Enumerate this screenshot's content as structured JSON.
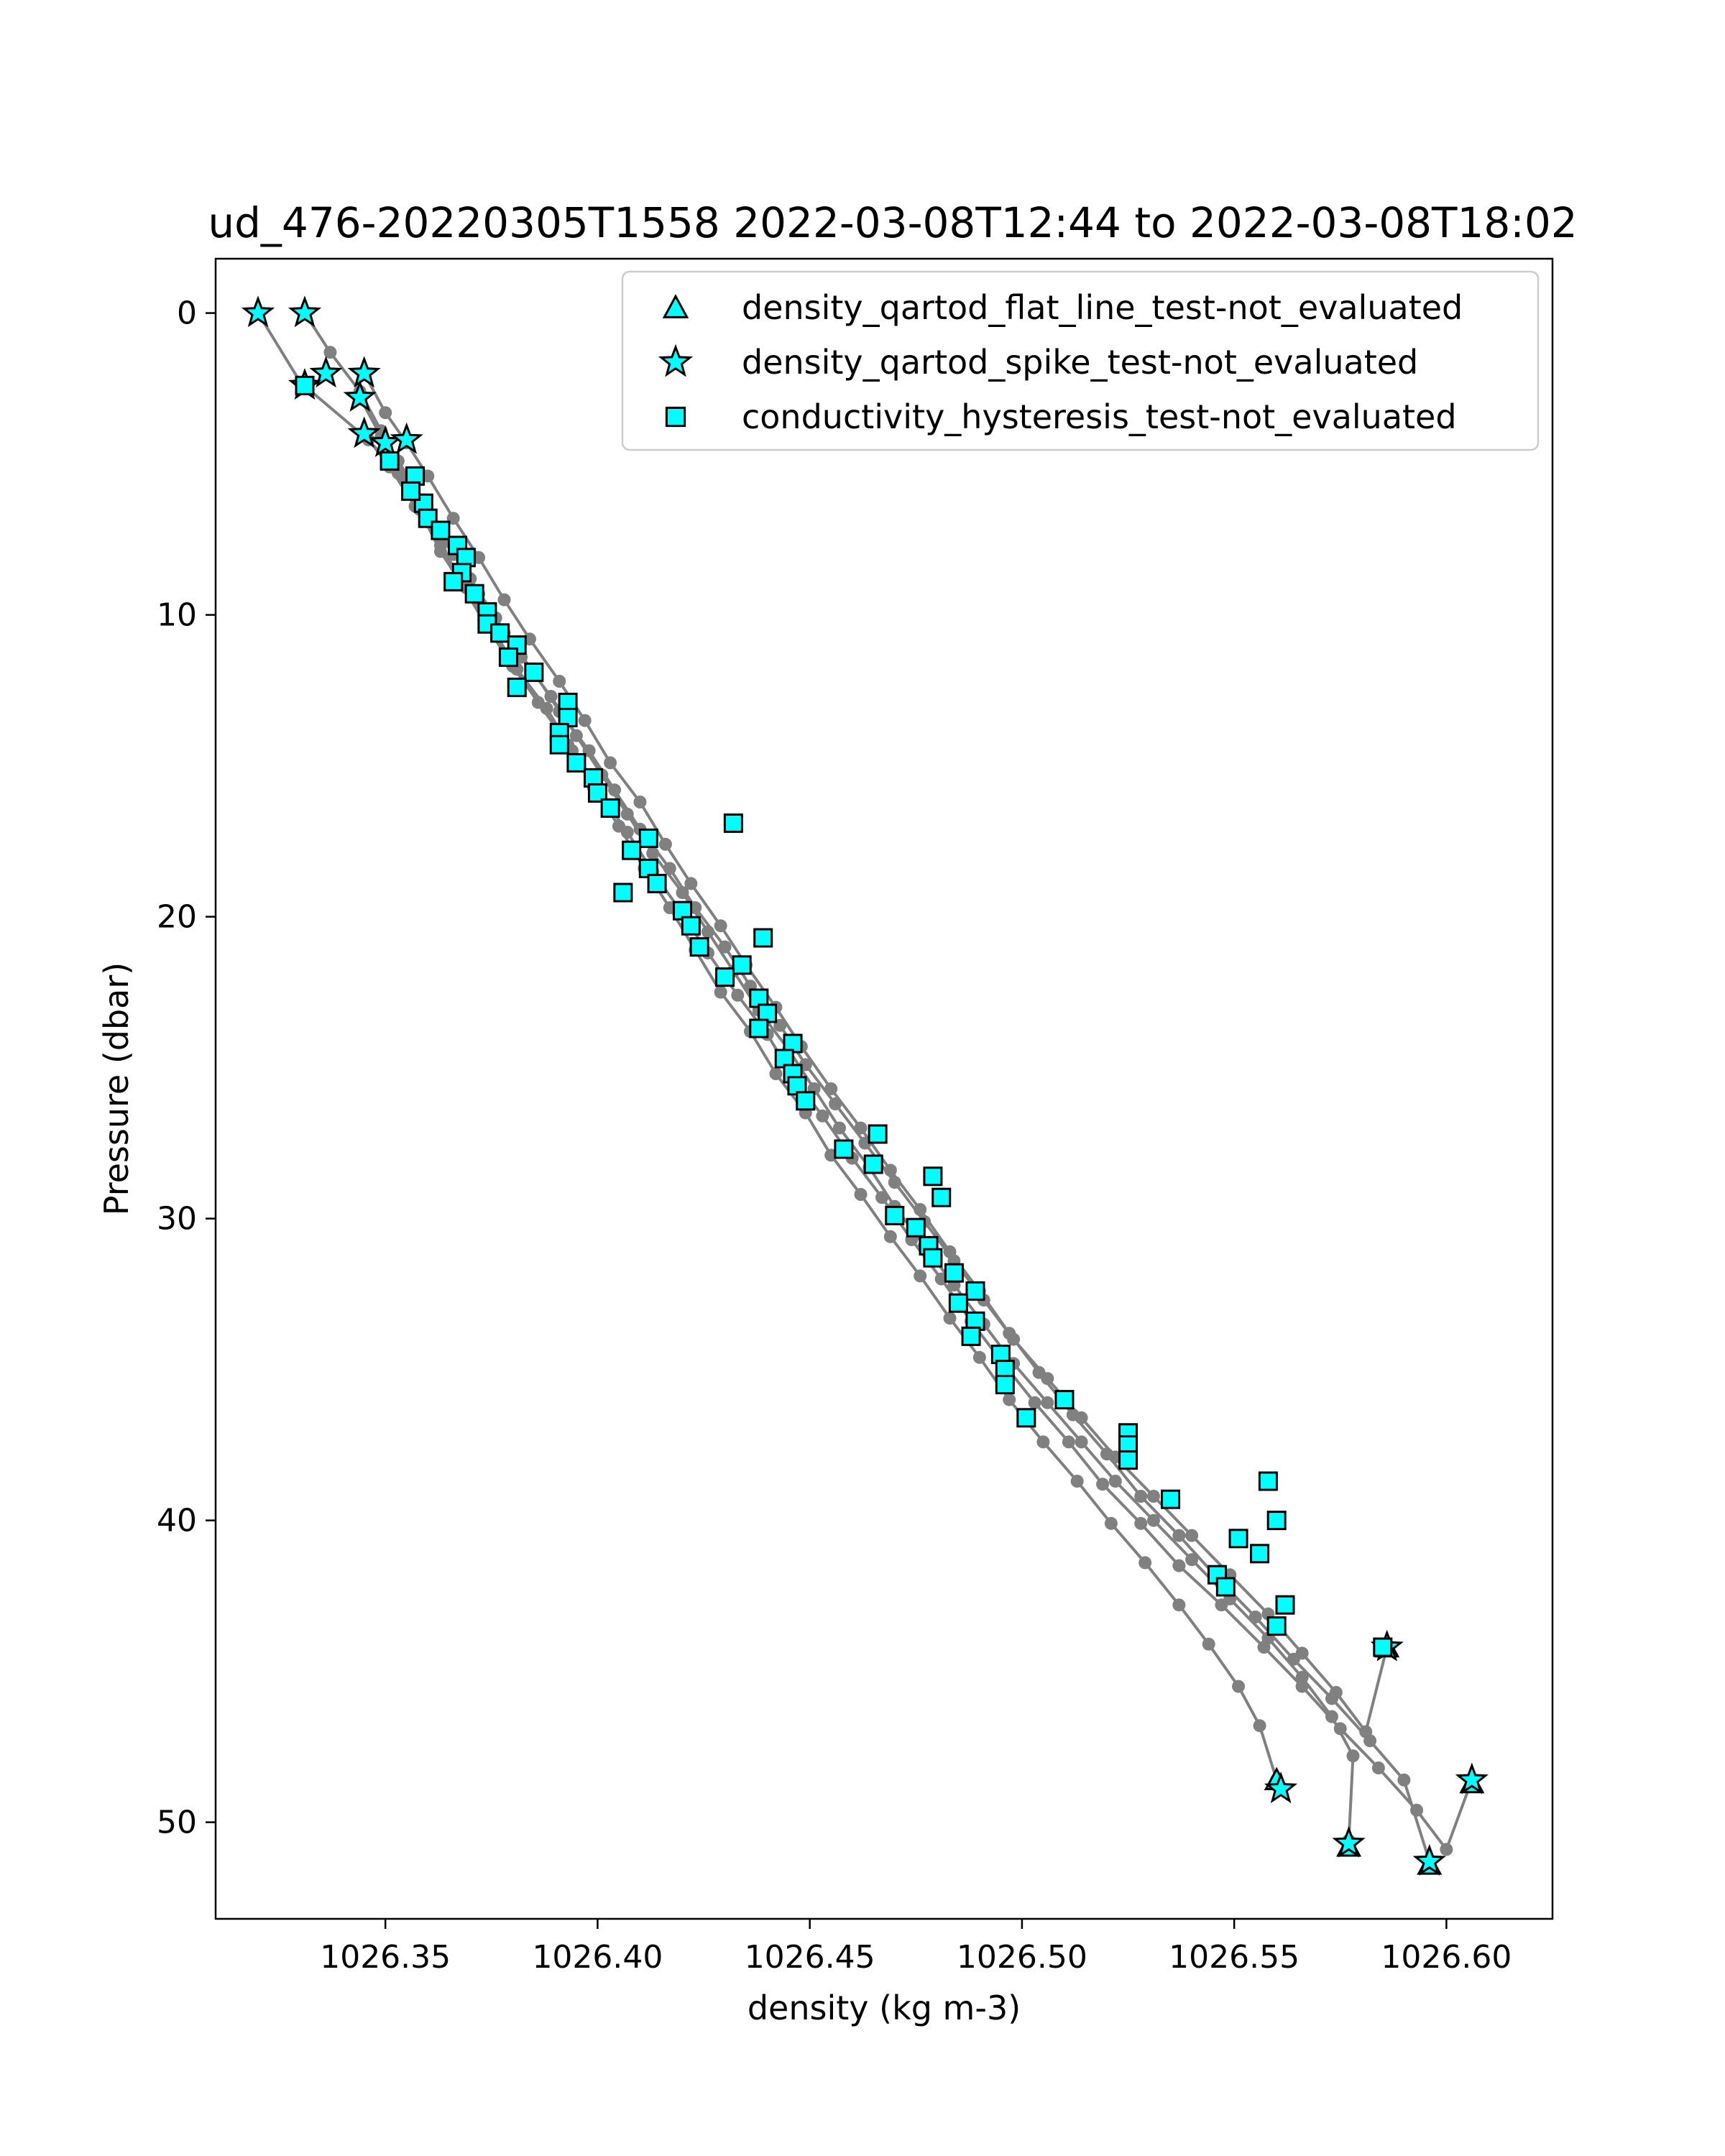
{
  "chart_data": {
    "type": "scatter",
    "title": "ud_476-20220305T1558 2022-03-08T12:44 to 2022-03-08T18:02",
    "xlabel": "density (kg m-3)",
    "ylabel": "Pressure (dbar)",
    "xlim": [
      1026.31,
      1026.625
    ],
    "ylim": [
      53.2,
      -1.8
    ],
    "y_inverted": true,
    "xticks": [
      1026.35,
      1026.4,
      1026.45,
      1026.5,
      1026.55,
      1026.6
    ],
    "xtick_labels": [
      "1026.35",
      "1026.40",
      "1026.45",
      "1026.50",
      "1026.55",
      "1026.60"
    ],
    "yticks": [
      0,
      10,
      20,
      30,
      40,
      50
    ],
    "ytick_labels": [
      "0",
      "10",
      "20",
      "30",
      "40",
      "50"
    ],
    "grid": false,
    "legend_position": "top-right",
    "legend": [
      {
        "label": "density_qartod_flat_line_test-not_evaluated",
        "marker": "triangle"
      },
      {
        "label": "density_qartod_spike_test-not_evaluated",
        "marker": "star"
      },
      {
        "label": "conductivity_hysteresis_test-not_evaluated",
        "marker": "square"
      }
    ],
    "colors": {
      "profile": "#808080",
      "marker_fill": "#00ffff",
      "marker_edge": "#000000"
    },
    "profiles": [
      {
        "points": [
          [
            1026.32,
            0.0
          ],
          [
            1026.33,
            2.3
          ],
          [
            1026.346,
            4.2
          ],
          [
            1026.353,
            5.3
          ],
          [
            1026.358,
            6.5
          ],
          [
            1026.363,
            7.9
          ],
          [
            1026.368,
            9.0
          ],
          [
            1026.374,
            10.4
          ],
          [
            1026.38,
            11.7
          ],
          [
            1026.386,
            12.9
          ],
          [
            1026.393,
            14.3
          ],
          [
            1026.399,
            15.7
          ],
          [
            1026.405,
            17.0
          ],
          [
            1026.411,
            18.4
          ],
          [
            1026.417,
            19.7
          ],
          [
            1026.423,
            21.1
          ],
          [
            1026.429,
            22.5
          ],
          [
            1026.436,
            23.8
          ],
          [
            1026.442,
            25.2
          ],
          [
            1026.449,
            26.5
          ],
          [
            1026.455,
            27.9
          ],
          [
            1026.462,
            29.2
          ],
          [
            1026.469,
            30.6
          ],
          [
            1026.476,
            31.9
          ],
          [
            1026.483,
            33.3
          ],
          [
            1026.49,
            34.6
          ],
          [
            1026.497,
            36.0
          ],
          [
            1026.505,
            37.4
          ],
          [
            1026.513,
            38.7
          ],
          [
            1026.521,
            40.1
          ],
          [
            1026.529,
            41.4
          ],
          [
            1026.537,
            42.8
          ],
          [
            1026.544,
            44.1
          ],
          [
            1026.551,
            45.5
          ],
          [
            1026.556,
            46.8
          ],
          [
            1026.56,
            48.6
          ],
          [
            1026.561,
            48.9
          ]
        ]
      },
      {
        "points": [
          [
            1026.331,
            0.0
          ],
          [
            1026.337,
            1.3
          ],
          [
            1026.344,
            2.6
          ],
          [
            1026.349,
            3.9
          ],
          [
            1026.353,
            4.9
          ],
          [
            1026.359,
            6.2
          ],
          [
            1026.364,
            7.5
          ],
          [
            1026.37,
            8.8
          ],
          [
            1026.376,
            10.1
          ],
          [
            1026.382,
            11.4
          ],
          [
            1026.389,
            12.7
          ],
          [
            1026.395,
            14.0
          ],
          [
            1026.401,
            15.3
          ],
          [
            1026.407,
            16.6
          ],
          [
            1026.413,
            17.9
          ],
          [
            1026.42,
            19.2
          ],
          [
            1026.426,
            20.5
          ],
          [
            1026.432,
            21.8
          ],
          [
            1026.438,
            23.1
          ],
          [
            1026.445,
            24.4
          ],
          [
            1026.451,
            25.7
          ],
          [
            1026.457,
            27.0
          ],
          [
            1026.464,
            28.3
          ],
          [
            1026.47,
            29.6
          ],
          [
            1026.477,
            30.9
          ],
          [
            1026.484,
            32.2
          ],
          [
            1026.491,
            33.5
          ],
          [
            1026.498,
            34.8
          ],
          [
            1026.506,
            36.1
          ],
          [
            1026.514,
            37.4
          ],
          [
            1026.522,
            38.7
          ],
          [
            1026.531,
            40.0
          ],
          [
            1026.54,
            41.3
          ],
          [
            1026.549,
            42.6
          ],
          [
            1026.558,
            43.9
          ],
          [
            1026.566,
            45.2
          ],
          [
            1026.573,
            46.5
          ],
          [
            1026.578,
            47.8
          ],
          [
            1026.577,
            50.6
          ]
        ]
      },
      {
        "points": [
          [
            1026.345,
            2.0
          ],
          [
            1026.35,
            3.3
          ],
          [
            1026.355,
            4.3
          ],
          [
            1026.36,
            5.4
          ],
          [
            1026.366,
            6.8
          ],
          [
            1026.372,
            8.1
          ],
          [
            1026.378,
            9.5
          ],
          [
            1026.384,
            10.8
          ],
          [
            1026.391,
            12.2
          ],
          [
            1026.397,
            13.5
          ],
          [
            1026.403,
            14.9
          ],
          [
            1026.41,
            16.2
          ],
          [
            1026.416,
            17.6
          ],
          [
            1026.422,
            18.9
          ],
          [
            1026.429,
            20.3
          ],
          [
            1026.435,
            21.6
          ],
          [
            1026.442,
            23.0
          ],
          [
            1026.448,
            24.3
          ],
          [
            1026.455,
            25.7
          ],
          [
            1026.462,
            27.0
          ],
          [
            1026.469,
            28.4
          ],
          [
            1026.476,
            29.7
          ],
          [
            1026.483,
            31.1
          ],
          [
            1026.49,
            32.4
          ],
          [
            1026.497,
            33.8
          ],
          [
            1026.504,
            35.1
          ],
          [
            1026.512,
            36.5
          ],
          [
            1026.52,
            37.8
          ],
          [
            1026.528,
            39.2
          ],
          [
            1026.537,
            40.5
          ],
          [
            1026.546,
            41.9
          ],
          [
            1026.555,
            43.2
          ],
          [
            1026.564,
            44.6
          ],
          [
            1026.573,
            45.9
          ],
          [
            1026.582,
            47.3
          ],
          [
            1026.59,
            48.6
          ],
          [
            1026.596,
            51.3
          ]
        ]
      },
      {
        "points": [
          [
            1026.345,
            4.0
          ],
          [
            1026.351,
            5.1
          ],
          [
            1026.357,
            6.4
          ],
          [
            1026.363,
            7.7
          ],
          [
            1026.369,
            9.1
          ],
          [
            1026.375,
            10.4
          ],
          [
            1026.381,
            11.8
          ],
          [
            1026.388,
            13.1
          ],
          [
            1026.394,
            14.5
          ],
          [
            1026.4,
            15.8
          ],
          [
            1026.407,
            17.2
          ],
          [
            1026.413,
            18.5
          ],
          [
            1026.42,
            19.9
          ],
          [
            1026.426,
            21.2
          ],
          [
            1026.433,
            22.6
          ],
          [
            1026.44,
            23.9
          ],
          [
            1026.446,
            25.3
          ],
          [
            1026.453,
            26.6
          ],
          [
            1026.46,
            28.0
          ],
          [
            1026.467,
            29.3
          ],
          [
            1026.474,
            30.7
          ],
          [
            1026.481,
            32.0
          ],
          [
            1026.488,
            33.4
          ],
          [
            1026.495,
            34.7
          ],
          [
            1026.503,
            36.1
          ],
          [
            1026.511,
            37.4
          ],
          [
            1026.519,
            38.8
          ],
          [
            1026.528,
            40.1
          ],
          [
            1026.537,
            41.5
          ],
          [
            1026.547,
            42.8
          ],
          [
            1026.557,
            44.2
          ],
          [
            1026.566,
            45.5
          ],
          [
            1026.575,
            46.9
          ],
          [
            1026.584,
            48.2
          ],
          [
            1026.593,
            49.6
          ],
          [
            1026.6,
            50.9
          ],
          [
            1026.606,
            48.6
          ]
        ]
      },
      {
        "points": [
          [
            1026.344,
            2.8
          ],
          [
            1026.349,
            4.1
          ],
          [
            1026.354,
            5.4
          ],
          [
            1026.36,
            6.7
          ],
          [
            1026.366,
            8.0
          ],
          [
            1026.372,
            9.3
          ],
          [
            1026.378,
            10.6
          ],
          [
            1026.385,
            11.9
          ],
          [
            1026.391,
            13.2
          ],
          [
            1026.398,
            14.5
          ],
          [
            1026.404,
            15.8
          ],
          [
            1026.41,
            17.1
          ],
          [
            1026.417,
            18.4
          ],
          [
            1026.423,
            19.7
          ],
          [
            1026.43,
            21.0
          ],
          [
            1026.436,
            22.3
          ],
          [
            1026.443,
            23.6
          ],
          [
            1026.449,
            24.9
          ],
          [
            1026.456,
            26.2
          ],
          [
            1026.463,
            27.5
          ],
          [
            1026.47,
            28.8
          ],
          [
            1026.477,
            30.1
          ],
          [
            1026.484,
            31.4
          ],
          [
            1026.491,
            32.7
          ],
          [
            1026.498,
            34.0
          ],
          [
            1026.506,
            35.3
          ],
          [
            1026.514,
            36.6
          ],
          [
            1026.522,
            37.9
          ],
          [
            1026.531,
            39.2
          ],
          [
            1026.54,
            40.5
          ],
          [
            1026.549,
            41.8
          ],
          [
            1026.558,
            43.1
          ],
          [
            1026.566,
            44.4
          ],
          [
            1026.574,
            45.7
          ],
          [
            1026.581,
            47.0
          ],
          [
            1026.586,
            44.2
          ]
        ]
      }
    ],
    "series": [
      {
        "name": "density_qartod_flat_line_test-not_evaluated",
        "marker": "triangle",
        "points": [
          [
            1026.56,
            48.6
          ],
          [
            1026.577,
            50.8
          ],
          [
            1026.596,
            51.4
          ],
          [
            1026.606,
            48.7
          ],
          [
            1026.586,
            44.2
          ]
        ]
      },
      {
        "name": "density_qartod_spike_test-not_evaluated",
        "marker": "star",
        "points": [
          [
            1026.32,
            0.0
          ],
          [
            1026.331,
            0.0
          ],
          [
            1026.336,
            2.0
          ],
          [
            1026.345,
            2.0
          ],
          [
            1026.344,
            2.8
          ],
          [
            1026.345,
            4.0
          ],
          [
            1026.35,
            4.3
          ],
          [
            1026.355,
            4.2
          ],
          [
            1026.331,
            2.4
          ],
          [
            1026.561,
            48.9
          ],
          [
            1026.577,
            50.7
          ],
          [
            1026.596,
            51.3
          ],
          [
            1026.606,
            48.6
          ],
          [
            1026.586,
            44.2
          ]
        ]
      },
      {
        "name": "conductivity_hysteresis_test-not_evaluated",
        "marker": "square",
        "points": [
          [
            1026.331,
            2.4
          ],
          [
            1026.351,
            4.9
          ],
          [
            1026.357,
            5.4
          ],
          [
            1026.359,
            6.3
          ],
          [
            1026.356,
            5.9
          ],
          [
            1026.36,
            6.8
          ],
          [
            1026.363,
            7.2
          ],
          [
            1026.367,
            7.7
          ],
          [
            1026.369,
            8.1
          ],
          [
            1026.368,
            8.6
          ],
          [
            1026.366,
            8.9
          ],
          [
            1026.371,
            9.3
          ],
          [
            1026.374,
            9.9
          ],
          [
            1026.374,
            10.3
          ],
          [
            1026.377,
            10.6
          ],
          [
            1026.381,
            11.0
          ],
          [
            1026.379,
            11.4
          ],
          [
            1026.385,
            11.9
          ],
          [
            1026.381,
            12.4
          ],
          [
            1026.393,
            12.9
          ],
          [
            1026.393,
            13.4
          ],
          [
            1026.391,
            13.9
          ],
          [
            1026.391,
            14.3
          ],
          [
            1026.395,
            14.9
          ],
          [
            1026.399,
            15.4
          ],
          [
            1026.4,
            15.9
          ],
          [
            1026.403,
            16.4
          ],
          [
            1026.432,
            16.9
          ],
          [
            1026.412,
            17.4
          ],
          [
            1026.408,
            17.8
          ],
          [
            1026.412,
            18.4
          ],
          [
            1026.414,
            18.9
          ],
          [
            1026.406,
            19.2
          ],
          [
            1026.42,
            19.8
          ],
          [
            1026.422,
            20.3
          ],
          [
            1026.439,
            20.7
          ],
          [
            1026.424,
            21.0
          ],
          [
            1026.434,
            21.6
          ],
          [
            1026.43,
            22.0
          ],
          [
            1026.438,
            22.7
          ],
          [
            1026.44,
            23.2
          ],
          [
            1026.438,
            23.7
          ],
          [
            1026.446,
            24.2
          ],
          [
            1026.444,
            24.7
          ],
          [
            1026.446,
            25.2
          ],
          [
            1026.447,
            25.6
          ],
          [
            1026.449,
            26.1
          ],
          [
            1026.466,
            27.2
          ],
          [
            1026.458,
            27.7
          ],
          [
            1026.465,
            28.2
          ],
          [
            1026.479,
            28.6
          ],
          [
            1026.481,
            29.3
          ],
          [
            1026.47,
            29.9
          ],
          [
            1026.475,
            30.3
          ],
          [
            1026.478,
            30.9
          ],
          [
            1026.479,
            31.3
          ],
          [
            1026.484,
            31.8
          ],
          [
            1026.489,
            32.4
          ],
          [
            1026.485,
            32.8
          ],
          [
            1026.489,
            33.4
          ],
          [
            1026.488,
            33.9
          ],
          [
            1026.495,
            34.5
          ],
          [
            1026.496,
            35.0
          ],
          [
            1026.496,
            35.5
          ],
          [
            1026.51,
            36.0
          ],
          [
            1026.501,
            36.6
          ],
          [
            1026.525,
            37.1
          ],
          [
            1026.525,
            37.5
          ],
          [
            1026.525,
            38.0
          ],
          [
            1026.558,
            38.7
          ],
          [
            1026.535,
            39.3
          ],
          [
            1026.56,
            40.0
          ],
          [
            1026.551,
            40.6
          ],
          [
            1026.556,
            41.1
          ],
          [
            1026.546,
            41.8
          ],
          [
            1026.548,
            42.2
          ],
          [
            1026.562,
            42.8
          ],
          [
            1026.56,
            43.5
          ],
          [
            1026.585,
            44.2
          ]
        ]
      }
    ]
  }
}
